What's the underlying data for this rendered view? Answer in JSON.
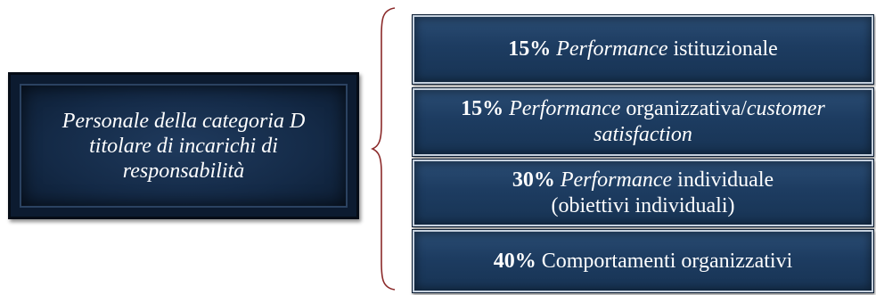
{
  "left": {
    "lines": [
      "Personale della categoria D",
      "titolare di incarichi di",
      "responsabilità"
    ]
  },
  "brace_color": "#8b2a2a",
  "items": [
    {
      "percent": "15%",
      "parts": [
        {
          "text": "Performance",
          "italic": true
        },
        {
          "text": " istituzionale",
          "italic": false
        }
      ]
    },
    {
      "percent": "15%",
      "parts": [
        {
          "text": "Performance",
          "italic": true
        },
        {
          "text": " organizzativa/",
          "italic": false
        },
        {
          "text": "customer satisfaction",
          "italic": true
        }
      ]
    },
    {
      "percent": "30%",
      "parts": [
        {
          "text": "Performance",
          "italic": true
        },
        {
          "text": " individuale",
          "italic": false
        },
        {
          "text": "(obiettivi individuali)",
          "italic": false,
          "newline": true
        }
      ]
    },
    {
      "percent": "40%",
      "parts": [
        {
          "text": "Comportamenti organizzativi",
          "italic": false
        }
      ]
    }
  ]
}
